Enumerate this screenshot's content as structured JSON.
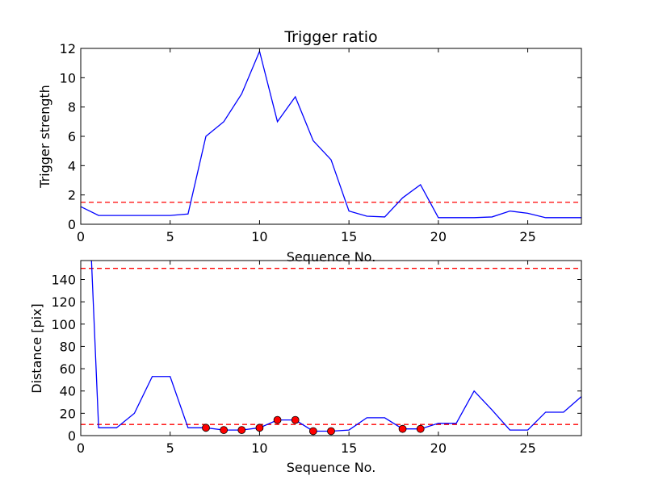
{
  "chart_data": [
    {
      "type": "line",
      "title": "Trigger ratio",
      "xlabel": "Sequence No.",
      "ylabel": "Trigger strength",
      "xlim": [
        0,
        28
      ],
      "ylim": [
        0,
        12
      ],
      "xticks": [
        0,
        5,
        10,
        15,
        20,
        25
      ],
      "yticks": [
        0,
        2,
        4,
        6,
        8,
        10,
        12
      ],
      "grid": false,
      "colors": {
        "line": "#0000ff",
        "threshold": "#ff0000"
      },
      "series": [
        {
          "x": [
            0,
            1,
            2,
            3,
            4,
            5,
            6,
            7,
            8,
            9,
            10,
            11,
            12,
            13,
            14,
            15,
            16,
            17,
            18,
            19,
            20,
            21,
            22,
            23,
            24,
            25,
            26,
            27,
            28
          ],
          "values": [
            1.2,
            0.6,
            0.6,
            0.6,
            0.6,
            0.6,
            0.7,
            6.0,
            7.0,
            8.9,
            11.8,
            7.0,
            8.7,
            5.7,
            4.4,
            0.9,
            0.55,
            0.5,
            1.8,
            2.7,
            0.45,
            0.45,
            0.45,
            0.5,
            0.9,
            0.75,
            0.45,
            0.45,
            0.45
          ]
        }
      ],
      "hlines": [
        1.5
      ]
    },
    {
      "type": "line",
      "title": "",
      "xlabel": "Sequence No.",
      "ylabel": "Distance [pix]",
      "xlim": [
        0,
        28
      ],
      "ylim": [
        0,
        157
      ],
      "xticks": [
        0,
        5,
        10,
        15,
        20,
        25
      ],
      "yticks": [
        0,
        20,
        40,
        60,
        80,
        100,
        120,
        140
      ],
      "grid": false,
      "colors": {
        "line": "#0000ff",
        "threshold": "#ff0000",
        "marker": "#ff0000"
      },
      "series": [
        {
          "x": [
            0.6,
            1,
            2,
            3,
            4,
            5,
            6,
            7,
            8,
            9,
            10,
            11,
            12,
            13,
            14,
            15,
            16,
            17,
            18,
            19,
            20,
            21,
            22,
            23,
            24,
            25,
            26,
            27,
            28
          ],
          "values": [
            157,
            7,
            7,
            20,
            53,
            53,
            7,
            7,
            5,
            5,
            7,
            14,
            14,
            4,
            4,
            5,
            16,
            16,
            6,
            6,
            11,
            11,
            40,
            23,
            5,
            5,
            21,
            21,
            35
          ]
        }
      ],
      "markers": {
        "x": [
          7,
          8,
          9,
          10,
          11,
          12,
          13,
          14,
          18,
          19
        ],
        "values": [
          7,
          5,
          5,
          7,
          14,
          14,
          4,
          4,
          6,
          6
        ]
      },
      "hlines": [
        150,
        10
      ]
    }
  ]
}
